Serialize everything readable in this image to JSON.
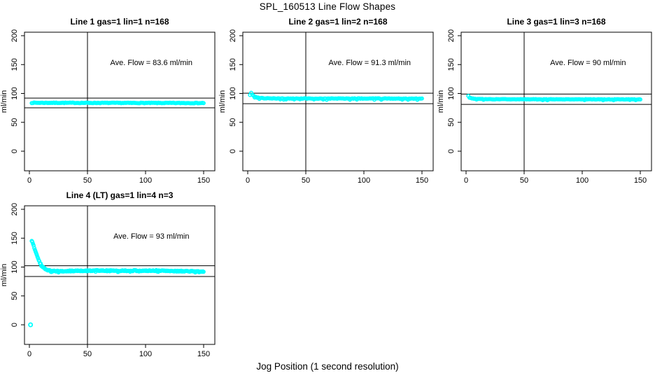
{
  "figure": {
    "title": "SPL_160513  Line Flow Shapes",
    "xlabel": "Jog Position (1 second resolution)",
    "background": "#ffffff"
  },
  "chart_data": {
    "type": "scatter",
    "title": "SPL_160513  Line Flow Shapes",
    "xlabel": "Jog Position (1 second resolution)",
    "ylabel": "ml/min",
    "x_ticks": [
      0,
      50,
      100,
      150
    ],
    "y_ticks": [
      0,
      50,
      100,
      150,
      200
    ],
    "xlim": [
      -4,
      160
    ],
    "ylim": [
      -35,
      206
    ],
    "grid": false,
    "point_color": "#00ffff",
    "line_color": "#000000",
    "marker": "open-circle",
    "panels": [
      {
        "id": "line-1",
        "title": "Line 1 gas=1 lin=1 n=168",
        "annotation": "Ave. Flow =  83.6  ml/min",
        "ave_flow": 83.6,
        "n": 168,
        "ref_hi": 92.0,
        "ref_lo": 75.2,
        "vline_x": 50,
        "x_start": 2,
        "x_end": 150,
        "step": 1,
        "noise": 0.5,
        "drop_rate": 0,
        "drop_size": 0,
        "seed": 7,
        "knots": [
          [
            2,
            83.8
          ],
          [
            150,
            83.4
          ]
        ],
        "outliers": []
      },
      {
        "id": "line-2",
        "title": "Line 2 gas=1 lin=2 n=168",
        "annotation": "Ave. Flow =  91.3  ml/min",
        "ave_flow": 91.3,
        "n": 168,
        "ref_hi": 100.4,
        "ref_lo": 82.2,
        "vline_x": 50,
        "x_start": 2,
        "x_end": 150,
        "step": 1,
        "noise": 0.45,
        "drop_rate": 0.12,
        "drop_size": 1.8,
        "seed": 23,
        "knots": [
          [
            2,
            99.5
          ],
          [
            3,
            101
          ],
          [
            4,
            98
          ],
          [
            5,
            96
          ],
          [
            6,
            94.5
          ],
          [
            8,
            93
          ],
          [
            10,
            92.2
          ],
          [
            14,
            91.6
          ],
          [
            20,
            91.3
          ],
          [
            150,
            91.1
          ]
        ],
        "outliers": []
      },
      {
        "id": "line-3",
        "title": "Line 3 gas=1 lin=3 n=168",
        "annotation": "Ave. Flow =  90  ml/min",
        "ave_flow": 90,
        "n": 168,
        "ref_hi": 99.0,
        "ref_lo": 81.0,
        "vline_x": 50,
        "x_start": 2,
        "x_end": 150,
        "step": 1,
        "noise": 0.35,
        "drop_rate": 0.06,
        "drop_size": 1.2,
        "seed": 31,
        "knots": [
          [
            2,
            95.5
          ],
          [
            3,
            93.5
          ],
          [
            4,
            92.3
          ],
          [
            6,
            91
          ],
          [
            10,
            90.3
          ],
          [
            20,
            90
          ],
          [
            150,
            89.7
          ]
        ],
        "outliers": []
      },
      {
        "id": "line-4",
        "title": "Line 4 (LT) gas=1 lin=4 n=3",
        "annotation": "Ave. Flow =  93  ml/min",
        "ave_flow": 93,
        "n": 3,
        "ref_hi": 102.3,
        "ref_lo": 83.7,
        "vline_x": 50,
        "x_start": 2,
        "x_end": 150,
        "step": 0.55,
        "noise": 0.8,
        "drop_rate": 0.05,
        "drop_size": 1.5,
        "seed": 47,
        "knots": [
          [
            2,
            145
          ],
          [
            2.5,
            144
          ],
          [
            3,
            141
          ],
          [
            4,
            135
          ],
          [
            5,
            129
          ],
          [
            6,
            123
          ],
          [
            7,
            117
          ],
          [
            8,
            112
          ],
          [
            9,
            108
          ],
          [
            10,
            104.5
          ],
          [
            11,
            101.5
          ],
          [
            12,
            99.5
          ],
          [
            13,
            98
          ],
          [
            14,
            96.5
          ],
          [
            15,
            95.5
          ],
          [
            16,
            94.8
          ],
          [
            18,
            93.8
          ],
          [
            20,
            93.2
          ],
          [
            25,
            92.8
          ],
          [
            35,
            93.2
          ],
          [
            50,
            93.5
          ],
          [
            60,
            94
          ],
          [
            75,
            93.5
          ],
          [
            90,
            93.8
          ],
          [
            100,
            93.5
          ],
          [
            110,
            94
          ],
          [
            120,
            93.2
          ],
          [
            130,
            93
          ],
          [
            140,
            92.8
          ],
          [
            150,
            92
          ]
        ],
        "outliers": [
          [
            1,
            0
          ]
        ]
      }
    ]
  }
}
